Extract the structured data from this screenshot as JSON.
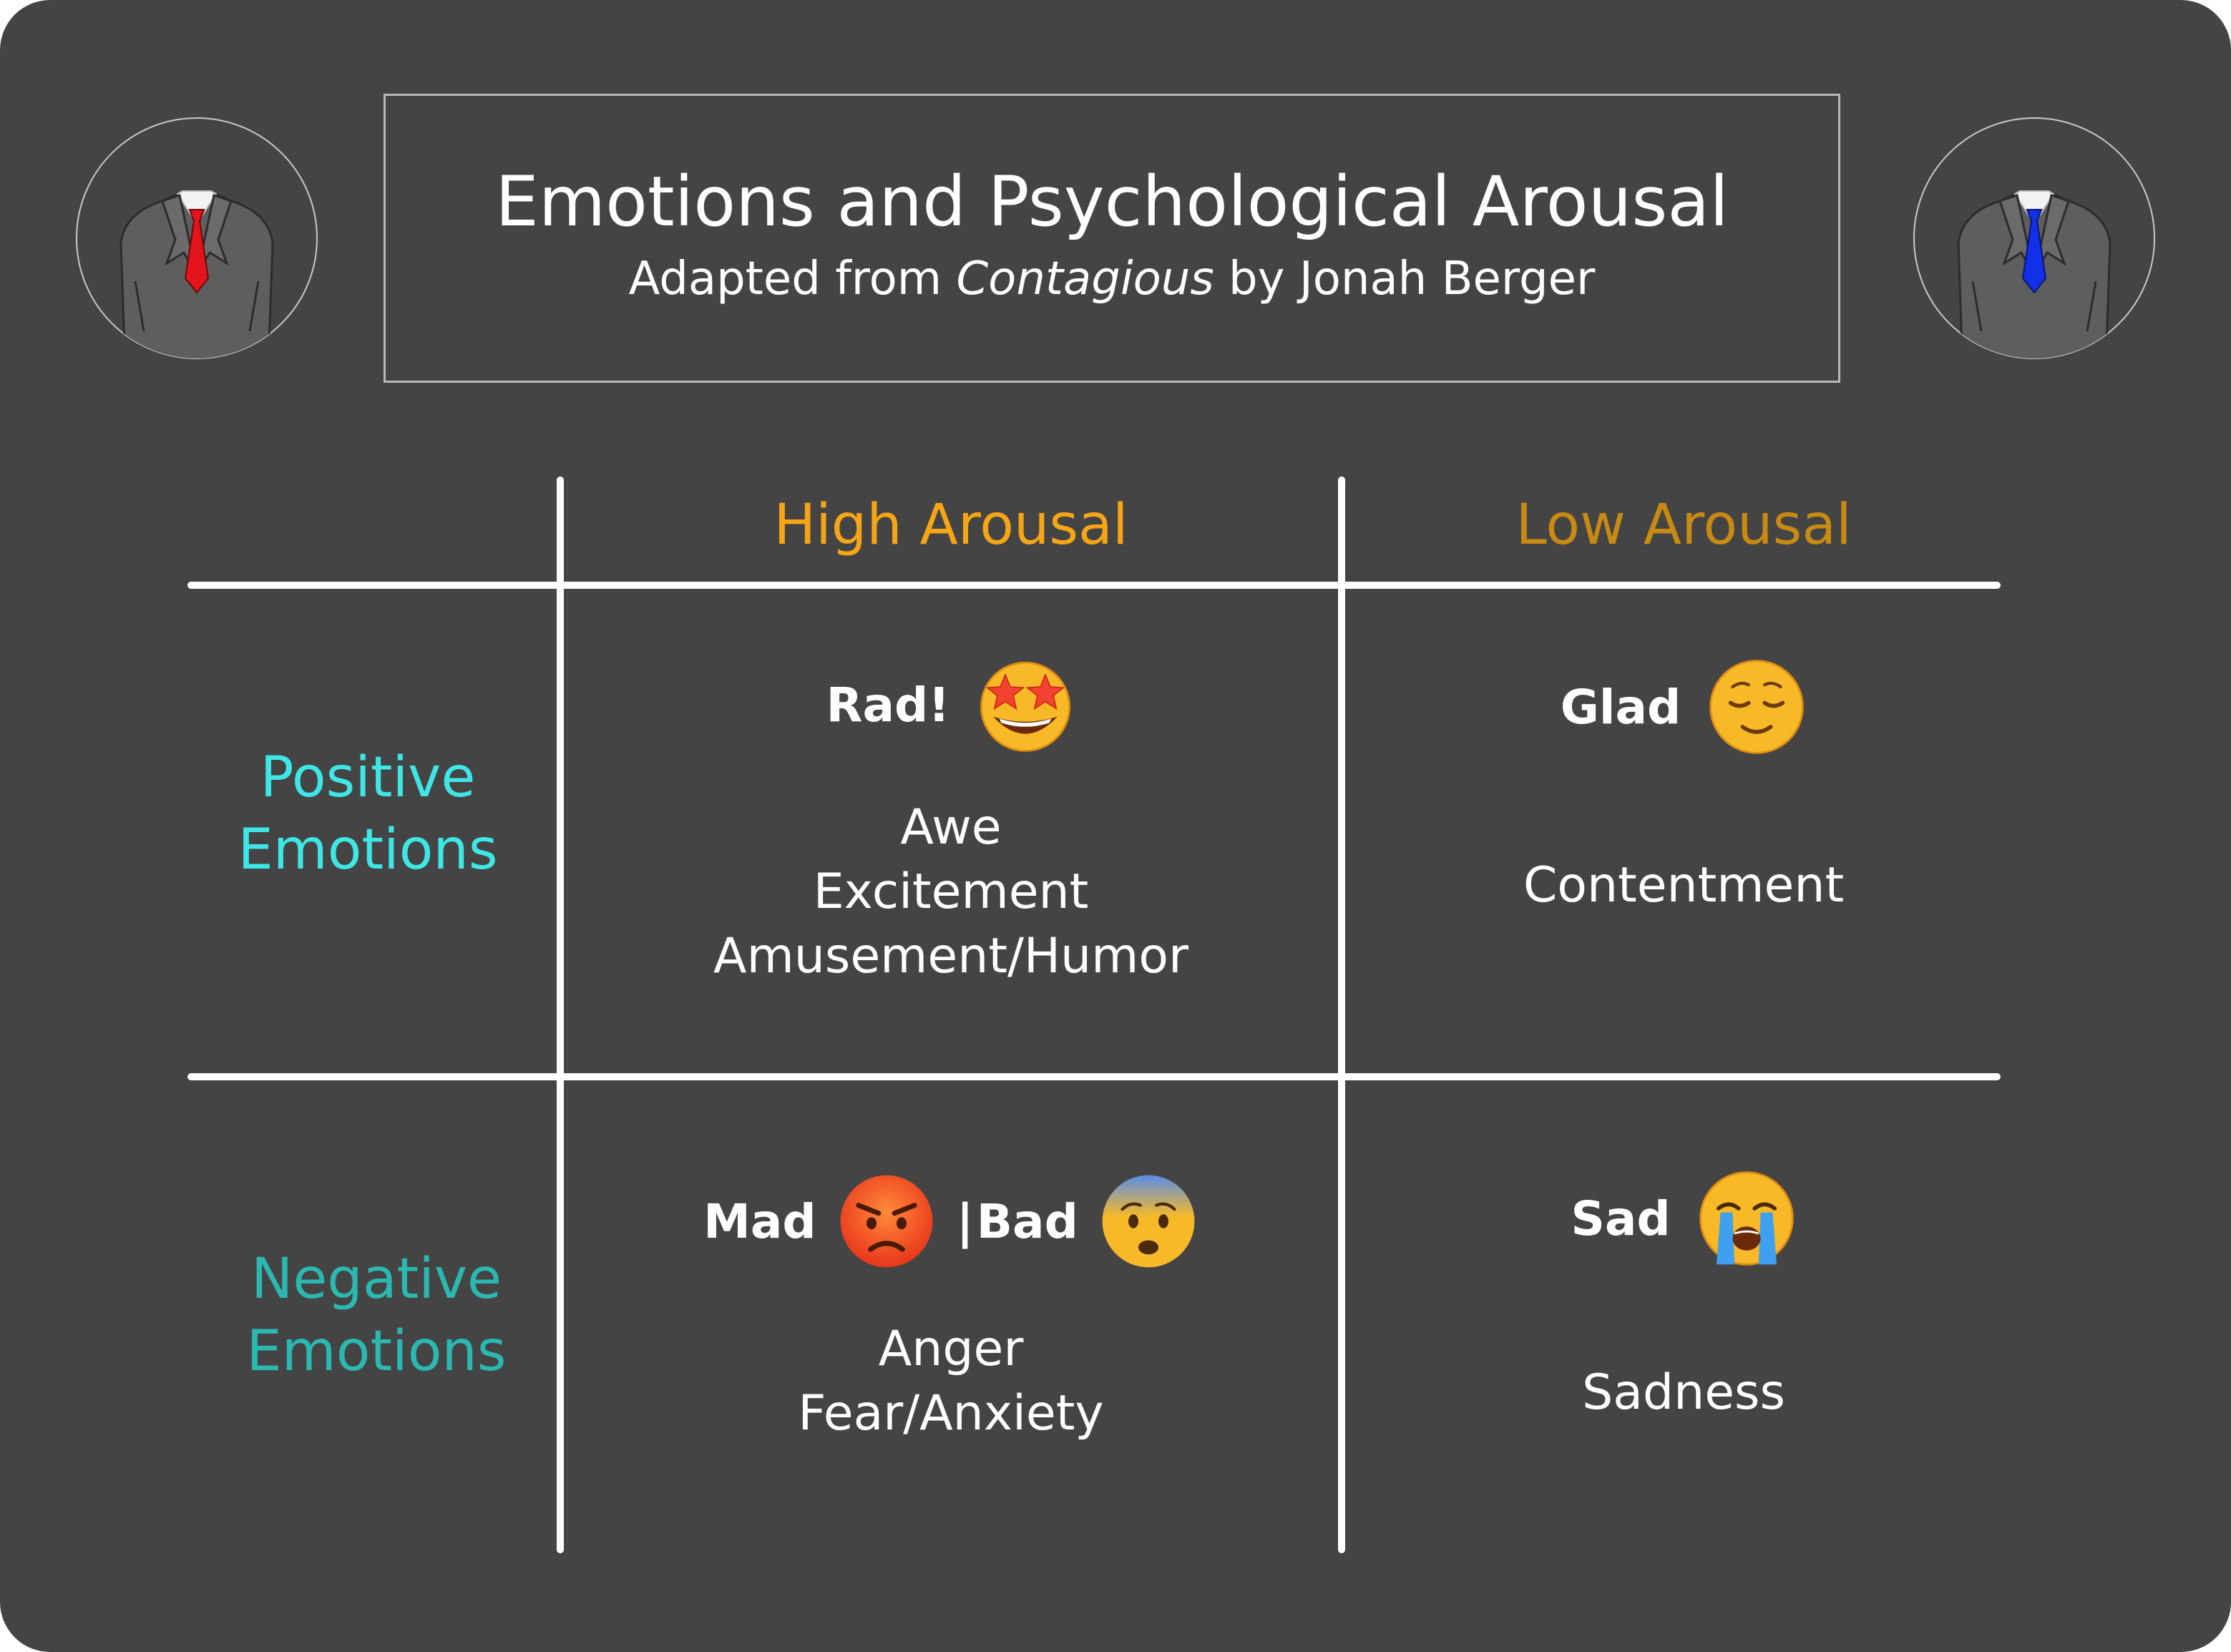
{
  "header": {
    "title": "Emotions and Psychological Arousal",
    "subtitle_prefix": "Adapted from",
    "subtitle_book": "Contagious",
    "subtitle_suffix": "by Jonah Berger"
  },
  "avatars": {
    "left": {
      "icon": "suit-red-tie-icon",
      "tie_color": "#e3141b"
    },
    "right": {
      "icon": "suit-blue-tie-icon",
      "tie_color": "#1230e8"
    }
  },
  "colors": {
    "high_arousal": "#f5a516",
    "low_arousal": "#c78a12",
    "positive": "#3ee6e6",
    "negative": "#2ab8b0",
    "background": "#444444"
  },
  "columns": {
    "high": "High Arousal",
    "low": "Low Arousal"
  },
  "rows": {
    "positive": [
      "Positive",
      "Emotions"
    ],
    "negative": [
      "Negative",
      "Emotions"
    ]
  },
  "cells": {
    "positive_high": {
      "label": "Rad!",
      "emoji": "star-struck-emoji",
      "items": [
        "Awe",
        "Excitement",
        "Amusement/Humor"
      ]
    },
    "positive_low": {
      "label": "Glad",
      "emoji": "relieved-face-emoji",
      "items": [
        "Contentment"
      ]
    },
    "negative_high": {
      "label": "Mad",
      "emoji": "angry-face-emoji",
      "separator": "|",
      "label2": "Bad",
      "emoji2": "anxious-face-emoji",
      "items": [
        "Anger",
        "Fear/Anxiety"
      ]
    },
    "negative_low": {
      "label": "Sad",
      "emoji": "crying-face-emoji",
      "items": [
        "Sadness"
      ]
    }
  }
}
